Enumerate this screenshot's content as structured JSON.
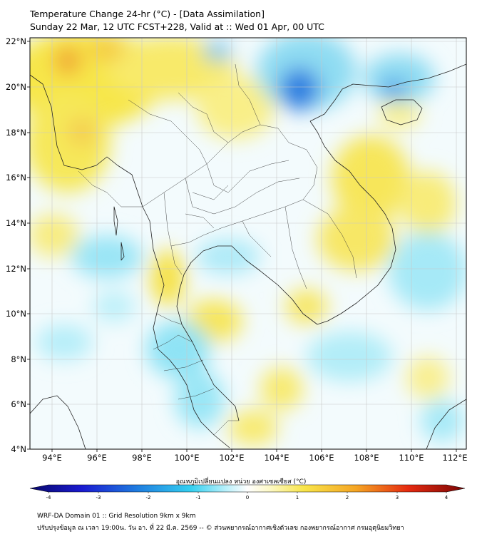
{
  "header": {
    "title": "Temperature Change 24-hr (°C) - [Data Assimilation]",
    "subtitle": "Sunday 22 Mar, 12 UTC FCST+228, Valid at :: Wed 01 Apr, 00 UTC"
  },
  "map": {
    "lon_ticks": [
      "94°E",
      "96°E",
      "98°E",
      "100°E",
      "102°E",
      "104°E",
      "106°E",
      "108°E",
      "110°E",
      "112°E"
    ],
    "lat_ticks": [
      "22°N",
      "20°N",
      "18°N",
      "16°N",
      "14°N",
      "12°N",
      "10°N",
      "8°N",
      "6°N",
      "4°N"
    ],
    "grid": true,
    "field_colors": {
      "cold": "#1e6fd9",
      "cool": "#8fe3f5",
      "neutral": "#f4fbfd",
      "warm": "#f7e84a",
      "hot": "#f0a830"
    }
  },
  "colorbar": {
    "label": "อุณหภูมิเปลี่ยนแปลง หน่วย องศาเซลเซียส (°C)",
    "ticks": [
      "-4",
      "-3",
      "-2",
      "-1",
      "0",
      "1",
      "2",
      "3",
      "4"
    ],
    "min": -4,
    "max": 4
  },
  "footer": {
    "line1": "WRF-DA Domain 01 :: Grid Resolution 9km x 9km",
    "line2": "ปรับปรุงข้อมูล ณ เวลา 19:00น. วัน อา. ที่ 22 มี.ค. 2569 -- © ส่วนพยากรณ์อากาศเชิงตัวเลข กองพยากรณ์อากาศ กรมอุตุนิยมวิทยา"
  }
}
